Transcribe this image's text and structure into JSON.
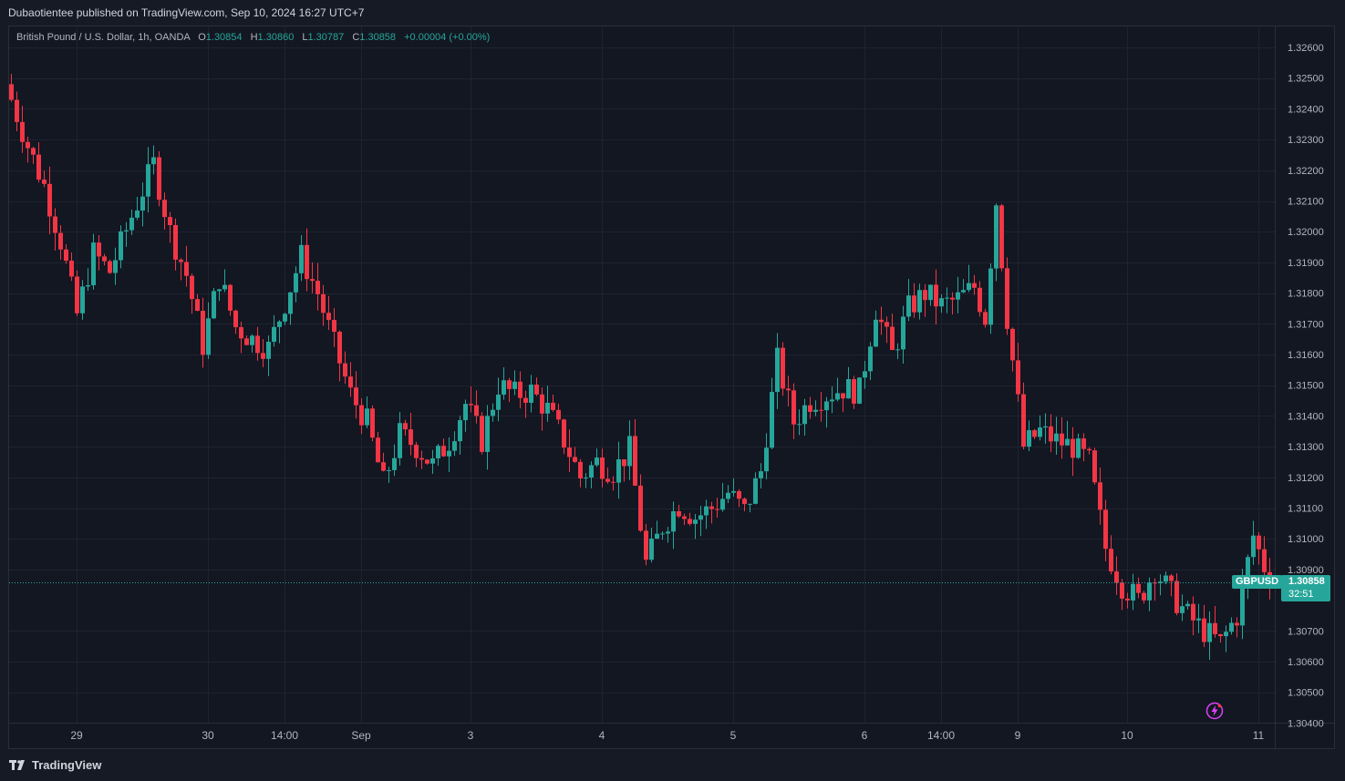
{
  "header": {
    "published": "Dubaotientee published on TradingView.com, Sep 10, 2024 16:27 UTC+7"
  },
  "legend": {
    "symbol_desc": "British Pound / U.S. Dollar, 1h, OANDA",
    "o_label": "O",
    "o": "1.30854",
    "h_label": "H",
    "h": "1.30860",
    "l_label": "L",
    "l": "1.30787",
    "c_label": "C",
    "c": "1.30858",
    "change": "+0.00004 (+0.00%)"
  },
  "badge": {
    "symbol": "GBPUSD",
    "price": "1.30858",
    "countdown": "32:51"
  },
  "footer": {
    "brand": "TradingView"
  },
  "colors": {
    "up": "#26a69a",
    "down": "#f23645",
    "bg": "#131722",
    "grid": "#1f2330",
    "axis_text": "#b2b5be"
  },
  "icons": [
    "tradingview-logo-icon",
    "lightning-icon"
  ],
  "chart_data": {
    "type": "candlestick",
    "symbol": "GBPUSD",
    "interval": "1h",
    "y_ticks": [
      "1.32600",
      "1.32500",
      "1.32400",
      "1.32300",
      "1.32200",
      "1.32100",
      "1.32000",
      "1.31900",
      "1.31800",
      "1.31700",
      "1.31600",
      "1.31500",
      "1.31400",
      "1.31300",
      "1.31200",
      "1.31100",
      "1.31000",
      "1.30900",
      "1.30700",
      "1.30600",
      "1.30500",
      "1.30400"
    ],
    "ylim": [
      1.304,
      1.3265
    ],
    "last_price": 1.30858,
    "x_ticks": [
      "29",
      "30",
      "14:00",
      "Sep",
      "3",
      "4",
      "5",
      "6",
      "14:00",
      "9",
      "10",
      "11"
    ],
    "close_path": [
      [
        0,
        1.3243
      ],
      [
        3,
        1.3228
      ],
      [
        6,
        1.3215
      ],
      [
        9,
        1.3197
      ],
      [
        12,
        1.3173
      ],
      [
        15,
        1.3193
      ],
      [
        18,
        1.3187
      ],
      [
        22,
        1.3205
      ],
      [
        26,
        1.3222
      ],
      [
        29,
        1.32
      ],
      [
        32,
        1.3186
      ],
      [
        35,
        1.3163
      ],
      [
        38,
        1.3185
      ],
      [
        41,
        1.3169
      ],
      [
        44,
        1.3165
      ],
      [
        47,
        1.3162
      ],
      [
        50,
        1.3177
      ],
      [
        53,
        1.3192
      ],
      [
        56,
        1.318
      ],
      [
        59,
        1.3163
      ],
      [
        62,
        1.3147
      ],
      [
        65,
        1.3138
      ],
      [
        68,
        1.3118
      ],
      [
        71,
        1.3134
      ],
      [
        74,
        1.313
      ],
      [
        77,
        1.3124
      ],
      [
        80,
        1.3132
      ],
      [
        83,
        1.3144
      ],
      [
        86,
        1.3132
      ],
      [
        89,
        1.315
      ],
      [
        92,
        1.3147
      ],
      [
        95,
        1.3148
      ],
      [
        98,
        1.3142
      ],
      [
        101,
        1.3132
      ],
      [
        104,
        1.312
      ],
      [
        107,
        1.3125
      ],
      [
        110,
        1.3122
      ],
      [
        113,
        1.3129
      ],
      [
        116,
        1.3092
      ],
      [
        119,
        1.3104
      ],
      [
        122,
        1.3111
      ],
      [
        125,
        1.3107
      ],
      [
        128,
        1.311
      ],
      [
        131,
        1.3115
      ],
      [
        134,
        1.3109
      ],
      [
        137,
        1.3122
      ],
      [
        140,
        1.3158
      ],
      [
        143,
        1.3138
      ],
      [
        146,
        1.3145
      ],
      [
        149,
        1.3147
      ],
      [
        152,
        1.3149
      ],
      [
        155,
        1.3148
      ],
      [
        158,
        1.3175
      ],
      [
        161,
        1.316
      ],
      [
        164,
        1.3175
      ],
      [
        167,
        1.318
      ],
      [
        170,
        1.3176
      ],
      [
        173,
        1.3178
      ],
      [
        176,
        1.3182
      ],
      [
        178,
        1.3172
      ],
      [
        180,
        1.321
      ],
      [
        182,
        1.3172
      ],
      [
        185,
        1.313
      ],
      [
        188,
        1.3135
      ],
      [
        191,
        1.3132
      ],
      [
        194,
        1.313
      ],
      [
        197,
        1.3125
      ],
      [
        200,
        1.3097
      ],
      [
        203,
        1.3085
      ],
      [
        206,
        1.308
      ],
      [
        209,
        1.309
      ],
      [
        212,
        1.3082
      ],
      [
        215,
        1.3075
      ],
      [
        218,
        1.307
      ],
      [
        221,
        1.3066
      ],
      [
        224,
        1.3075
      ],
      [
        227,
        1.3101
      ],
      [
        230,
        1.3086
      ]
    ]
  }
}
